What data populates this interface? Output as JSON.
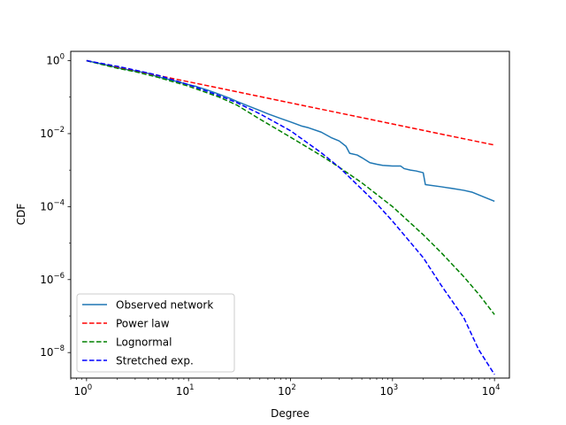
{
  "chart_data": {
    "type": "line",
    "xscale": "log",
    "yscale": "log",
    "xlabel": "Degree",
    "ylabel": "CDF",
    "xlim": [
      0.7,
      14000
    ],
    "ylim": [
      2e-09,
      1.8
    ],
    "grid": false,
    "legend_position": "lower-left",
    "x_ticks": [
      {
        "value": 1,
        "base": "10",
        "exp": "0"
      },
      {
        "value": 10,
        "base": "10",
        "exp": "1"
      },
      {
        "value": 100,
        "base": "10",
        "exp": "2"
      },
      {
        "value": 1000,
        "base": "10",
        "exp": "3"
      },
      {
        "value": 10000,
        "base": "10",
        "exp": "4"
      }
    ],
    "y_ticks": [
      {
        "value": 1,
        "base": "10",
        "exp": "0"
      },
      {
        "value": 0.01,
        "base": "10",
        "exp": "−2"
      },
      {
        "value": 0.0001,
        "base": "10",
        "exp": "−4"
      },
      {
        "value": 1e-06,
        "base": "10",
        "exp": "−6"
      },
      {
        "value": 1e-08,
        "base": "10",
        "exp": "−8"
      }
    ],
    "series": [
      {
        "name": "Observed network",
        "color": "#1f77b4",
        "dash": "solid",
        "points": [
          [
            1,
            1.0
          ],
          [
            1.5,
            0.78
          ],
          [
            2,
            0.65
          ],
          [
            2.5,
            0.57
          ],
          [
            3,
            0.52
          ],
          [
            4,
            0.45
          ],
          [
            5,
            0.36
          ],
          [
            6,
            0.32
          ],
          [
            8,
            0.26
          ],
          [
            10,
            0.22
          ],
          [
            12,
            0.195
          ],
          [
            15,
            0.16
          ],
          [
            20,
            0.12
          ],
          [
            25,
            0.095
          ],
          [
            30,
            0.076
          ],
          [
            40,
            0.055
          ],
          [
            50,
            0.043
          ],
          [
            60,
            0.035
          ],
          [
            80,
            0.026
          ],
          [
            100,
            0.021
          ],
          [
            130,
            0.016
          ],
          [
            150,
            0.0145
          ],
          [
            200,
            0.011
          ],
          [
            250,
            0.0078
          ],
          [
            300,
            0.0063
          ],
          [
            350,
            0.0045
          ],
          [
            380,
            0.0029
          ],
          [
            450,
            0.0026
          ],
          [
            500,
            0.0022
          ],
          [
            600,
            0.0016
          ],
          [
            700,
            0.00145
          ],
          [
            800,
            0.00135
          ],
          [
            1000,
            0.0013
          ],
          [
            1200,
            0.0013
          ],
          [
            1300,
            0.0011
          ],
          [
            1500,
            0.001
          ],
          [
            1700,
            0.00095
          ],
          [
            2000,
            0.00085
          ],
          [
            2100,
            0.0004
          ],
          [
            3000,
            0.00035
          ],
          [
            4000,
            0.00031
          ],
          [
            5000,
            0.00028
          ],
          [
            6000,
            0.00025
          ],
          [
            8000,
            0.00018
          ],
          [
            10000,
            0.00014
          ]
        ]
      },
      {
        "name": "Power law",
        "color": "#ff0000",
        "dash": "dashed",
        "points": [
          [
            1,
            1.0
          ],
          [
            10,
            0.264
          ],
          [
            100,
            0.0697
          ],
          [
            1000,
            0.0184
          ],
          [
            10000,
            0.00486
          ]
        ]
      },
      {
        "name": "Lognormal",
        "color": "#008000",
        "dash": "dashed",
        "points": [
          [
            1,
            1.0
          ],
          [
            2,
            0.62
          ],
          [
            3,
            0.5
          ],
          [
            5,
            0.35
          ],
          [
            10,
            0.2
          ],
          [
            20,
            0.1
          ],
          [
            30,
            0.06
          ],
          [
            50,
            0.025
          ],
          [
            100,
            0.008
          ],
          [
            200,
            0.0025
          ],
          [
            300,
            0.0012
          ],
          [
            500,
            0.00045
          ],
          [
            1000,
            0.0001
          ],
          [
            2000,
            1.7e-05
          ],
          [
            3000,
            5.5e-06
          ],
          [
            5000,
            1.2e-06
          ],
          [
            7000,
            4e-07
          ],
          [
            10000,
            1.1e-07
          ]
        ]
      },
      {
        "name": "Stretched exp.",
        "color": "#0000ff",
        "dash": "dashed",
        "points": [
          [
            1,
            1.0
          ],
          [
            2,
            0.7
          ],
          [
            3,
            0.55
          ],
          [
            5,
            0.4
          ],
          [
            10,
            0.22
          ],
          [
            20,
            0.11
          ],
          [
            30,
            0.07
          ],
          [
            50,
            0.035
          ],
          [
            100,
            0.012
          ],
          [
            200,
            0.003
          ],
          [
            300,
            0.0012
          ],
          [
            500,
            0.0003
          ],
          [
            700,
            0.00012
          ],
          [
            1000,
            4e-05
          ],
          [
            2000,
            4e-06
          ],
          [
            3000,
            7e-07
          ],
          [
            5000,
            9e-08
          ],
          [
            7000,
            1.2e-08
          ],
          [
            10000,
            2.5e-09
          ]
        ]
      }
    ]
  }
}
